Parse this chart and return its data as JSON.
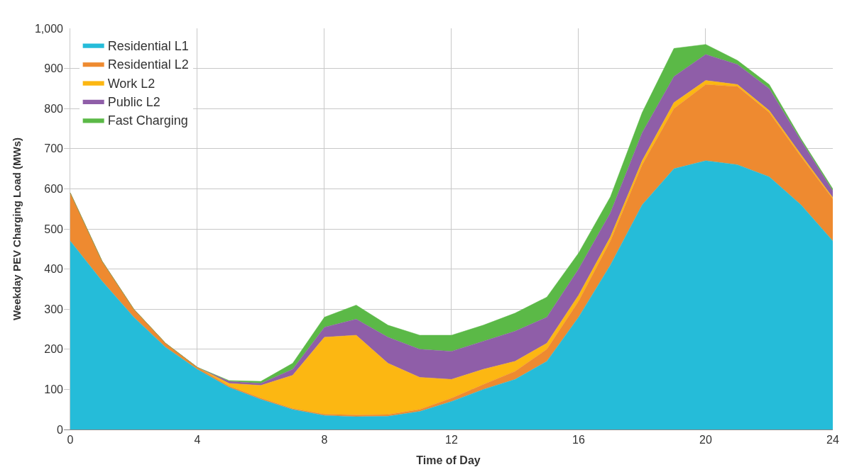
{
  "chart_data": {
    "type": "area",
    "stacked": true,
    "xlabel": "Time of Day",
    "ylabel": "Weekday PEV Charging Load (MWs)",
    "x": [
      0,
      1,
      2,
      3,
      4,
      5,
      6,
      7,
      8,
      9,
      10,
      11,
      12,
      13,
      14,
      15,
      16,
      17,
      18,
      19,
      20,
      21,
      22,
      23,
      24
    ],
    "series": [
      {
        "name": "Residential L1",
        "color": "#25bcd9",
        "values": [
          470,
          370,
          280,
          205,
          150,
          105,
          75,
          50,
          35,
          32,
          33,
          45,
          70,
          100,
          125,
          170,
          280,
          410,
          560,
          650,
          670,
          660,
          630,
          560,
          470
        ]
      },
      {
        "name": "Residential L2",
        "color": "#ee8a30",
        "values": [
          120,
          50,
          20,
          10,
          5,
          3,
          3,
          2,
          3,
          4,
          4,
          5,
          8,
          12,
          20,
          30,
          40,
          60,
          100,
          150,
          190,
          195,
          160,
          120,
          105
        ]
      },
      {
        "name": "Work L2",
        "color": "#fcb712",
        "values": [
          0,
          0,
          0,
          0,
          0,
          7,
          32,
          83,
          192,
          199,
          128,
          80,
          47,
          38,
          25,
          15,
          15,
          10,
          10,
          15,
          10,
          5,
          5,
          5,
          3
        ]
      },
      {
        "name": "Public L2",
        "color": "#8f5ea8",
        "values": [
          0,
          0,
          0,
          0,
          0,
          5,
          5,
          15,
          25,
          40,
          65,
          70,
          70,
          70,
          75,
          65,
          65,
          60,
          70,
          65,
          65,
          50,
          55,
          35,
          17
        ]
      },
      {
        "name": "Fast Charging",
        "color": "#5bb947",
        "values": [
          0,
          0,
          0,
          0,
          0,
          2,
          5,
          15,
          25,
          35,
          30,
          35,
          40,
          40,
          45,
          50,
          40,
          40,
          50,
          70,
          25,
          10,
          10,
          5,
          5
        ]
      }
    ],
    "xlim": [
      -0.2,
      24
    ],
    "xticks": [
      0,
      4,
      8,
      12,
      16,
      20,
      24
    ],
    "ylim": [
      0,
      1000
    ],
    "yticks": [
      0,
      100,
      200,
      300,
      400,
      500,
      600,
      700,
      800,
      900,
      {
        "value": 1000,
        "label": "1,000"
      }
    ],
    "grid": true,
    "legend": "top left",
    "marker": "none",
    "line_style": "solid"
  }
}
